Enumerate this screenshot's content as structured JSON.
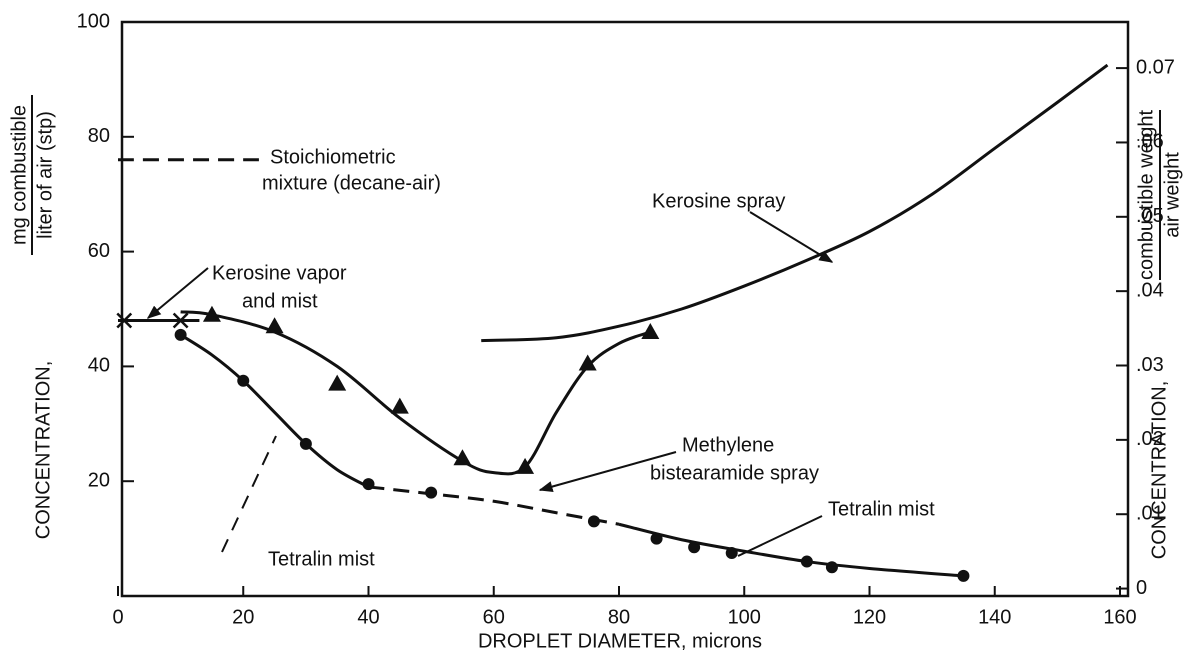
{
  "chart_data": {
    "type": "line",
    "xlabel": "DROPLET DIAMETER, microns",
    "ylabel": {
      "main": "CONCENTRATION,",
      "numerator": "mg combustible",
      "denominator": "liter of air (stp)"
    },
    "y2label": {
      "main": "CONCENTRATION,",
      "numerator": "combustible weight",
      "denominator": "air weight"
    },
    "xlim": [
      0,
      160
    ],
    "xticks": [
      0,
      20,
      40,
      60,
      80,
      100,
      120,
      140,
      160
    ],
    "ylim": [
      0,
      100
    ],
    "yticks": [
      20,
      40,
      60,
      80,
      100
    ],
    "y2lim": [
      -0.001,
      0.0762
    ],
    "y2ticks": [
      {
        "value": 0,
        "label": "0"
      },
      {
        "value": 0.01,
        "label": ".01"
      },
      {
        "value": 0.02,
        "label": ".02"
      },
      {
        "value": 0.03,
        "label": ".03"
      },
      {
        "value": 0.04,
        "label": ".04"
      },
      {
        "value": 0.05,
        "label": ".05"
      },
      {
        "value": 0.06,
        "label": ".06"
      },
      {
        "value": 0.07,
        "label": "0.07"
      }
    ],
    "series": [
      {
        "color": "#111111",
        "marker": "none",
        "dashed": true,
        "x": [
          0,
          22.5
        ],
        "values": [
          76,
          76
        ]
      },
      {
        "color": "#111111",
        "marker": "none",
        "dashed": false,
        "x": [
          0,
          13
        ],
        "values": [
          48,
          48
        ]
      },
      {
        "color": "#111111",
        "marker": "x",
        "dashed": false,
        "x": [
          1,
          10
        ],
        "values": [
          48,
          48
        ]
      },
      {
        "color": "#111111",
        "marker": "triangle",
        "dashed": false,
        "x": [
          15,
          25,
          35,
          45,
          55,
          65,
          75,
          85
        ],
        "values": [
          49,
          47,
          37,
          33,
          24,
          22.5,
          40.5,
          46
        ]
      },
      {
        "color": "#111111",
        "marker": "none",
        "dashed": false,
        "x": [
          10,
          15,
          25,
          35,
          45,
          55,
          60,
          65,
          70,
          75,
          80,
          85
        ],
        "values": [
          49.5,
          49,
          46,
          40,
          31,
          23.5,
          21.5,
          22.5,
          32,
          40,
          44,
          46
        ]
      },
      {
        "color": "#111111",
        "marker": "circle",
        "dashed": false,
        "x": [
          10,
          20,
          30,
          40,
          50,
          76,
          86,
          92,
          98,
          110,
          114,
          135
        ],
        "values": [
          45.5,
          37.5,
          26.5,
          19.5,
          18,
          13,
          10,
          8.5,
          7.5,
          6,
          5,
          3.5
        ]
      },
      {
        "color": "#111111",
        "marker": "none",
        "dashed": false,
        "x": [
          10,
          15,
          20,
          25,
          30,
          35,
          40
        ],
        "values": [
          45.5,
          42,
          37.5,
          32,
          26.5,
          22,
          19
        ]
      },
      {
        "color": "#111111",
        "marker": "none",
        "dashed": true,
        "x": [
          40,
          50,
          60,
          70,
          80
        ],
        "values": [
          19,
          17.8,
          16.5,
          14.5,
          12.5
        ]
      },
      {
        "color": "#111111",
        "marker": "none",
        "dashed": false,
        "x": [
          80,
          90,
          100,
          110,
          120,
          135
        ],
        "values": [
          12.5,
          9.8,
          7.8,
          6,
          4.8,
          3.5
        ]
      },
      {
        "color": "#111111",
        "marker": "none",
        "dashed": false,
        "x": [
          58,
          70,
          80,
          90,
          100,
          110,
          120,
          130,
          140,
          150,
          158
        ],
        "values": [
          44.5,
          45,
          47,
          50,
          54,
          58.5,
          63.5,
          70,
          78,
          86,
          92.5
        ]
      }
    ],
    "annotations": [
      {
        "lines": [
          "Stoichiometric",
          "mixture (decane-air)"
        ]
      },
      {
        "lines": [
          "Kerosine spray"
        ]
      },
      {
        "lines": [
          "Kerosine vapor",
          "and mist"
        ]
      },
      {
        "lines": [
          "Methylene",
          "bistearamide spray"
        ]
      },
      {
        "lines": [
          "Tetralin mist"
        ]
      },
      {
        "lines": [
          "Tetralin mist"
        ]
      }
    ]
  }
}
